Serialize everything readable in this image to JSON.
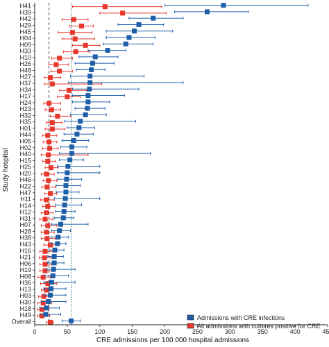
{
  "chart_data": {
    "type": "forest",
    "xlabel": "CRE admissions per 100 000 hospital admissions",
    "ylabel": "Study hospital",
    "xlim": [
      0,
      450
    ],
    "xticks": [
      0,
      50,
      100,
      150,
      200,
      250,
      300,
      350,
      400,
      450
    ],
    "reference_lines": [
      {
        "series": "cultures",
        "x": 22,
        "style": "dashed",
        "color": "#333333"
      },
      {
        "series": "infections",
        "x": 56,
        "style": "dotted",
        "color": "#1f6b6b"
      }
    ],
    "legend": {
      "placement": "bottom-right",
      "entries": [
        {
          "label": "Admissions with CRE infections",
          "color": "#1f5fa8"
        },
        {
          "label": "All admissions with cultures positive for CRE",
          "color": "#e8372c"
        }
      ]
    },
    "colors": {
      "infections": "#1f5fa8",
      "cultures": "#e8372c"
    },
    "categories": [
      "H41",
      "H39",
      "H42",
      "H29",
      "H45",
      "H04",
      "H09",
      "H33",
      "H10",
      "H26",
      "H48",
      "H27",
      "H37",
      "H34",
      "H17",
      "H24",
      "H23",
      "H32",
      "H35",
      "H01",
      "H44",
      "H05",
      "H02",
      "H40",
      "H15",
      "H25",
      "H20",
      "H46",
      "H22",
      "H47",
      "H11",
      "H14",
      "H12",
      "H31",
      "H07",
      "H28",
      "H38",
      "H43",
      "H16",
      "H21",
      "H06",
      "H19",
      "H08",
      "H36",
      "H13",
      "H03",
      "H30",
      "H18",
      "H49",
      "Overall"
    ],
    "infections": [
      [
        290,
        200,
        420
      ],
      [
        265,
        215,
        328
      ],
      [
        182,
        145,
        228
      ],
      [
        160,
        128,
        198
      ],
      [
        153,
        110,
        212
      ],
      [
        145,
        110,
        185
      ],
      [
        140,
        105,
        182
      ],
      [
        112,
        82,
        140
      ],
      [
        93,
        68,
        128
      ],
      [
        89,
        62,
        122
      ],
      [
        87,
        64,
        108
      ],
      [
        85,
        55,
        168
      ],
      [
        85,
        52,
        228
      ],
      [
        84,
        58,
        160
      ],
      [
        82,
        58,
        138
      ],
      [
        82,
        58,
        115
      ],
      [
        81,
        62,
        108
      ],
      [
        78,
        55,
        110
      ],
      [
        70,
        46,
        155
      ],
      [
        68,
        50,
        92
      ],
      [
        65,
        45,
        90
      ],
      [
        60,
        42,
        83
      ],
      [
        57,
        40,
        80
      ],
      [
        57,
        38,
        178
      ],
      [
        54,
        38,
        75
      ],
      [
        51,
        35,
        100
      ],
      [
        50,
        35,
        100
      ],
      [
        49,
        35,
        72
      ],
      [
        48,
        33,
        70
      ],
      [
        48,
        33,
        68
      ],
      [
        47,
        30,
        100
      ],
      [
        46,
        32,
        72
      ],
      [
        45,
        32,
        62
      ],
      [
        44,
        30,
        60
      ],
      [
        40,
        26,
        82
      ],
      [
        38,
        26,
        55
      ],
      [
        36,
        25,
        52
      ],
      [
        35,
        25,
        48
      ],
      [
        31,
        22,
        45
      ],
      [
        30,
        20,
        44
      ],
      [
        30,
        20,
        45
      ],
      [
        29,
        18,
        62
      ],
      [
        28,
        15,
        52
      ],
      [
        26,
        14,
        62
      ],
      [
        25,
        14,
        48
      ],
      [
        24,
        14,
        48
      ],
      [
        21,
        10,
        48
      ],
      [
        18,
        8,
        38
      ],
      [
        17,
        8,
        40
      ],
      [
        56,
        42,
        70
      ]
    ],
    "cultures": [
      [
        108,
        58,
        195
      ],
      [
        135,
        100,
        202
      ],
      [
        60,
        42,
        82
      ],
      [
        72,
        54,
        90
      ],
      [
        58,
        36,
        88
      ],
      [
        62,
        42,
        92
      ],
      [
        78,
        58,
        100
      ],
      [
        63,
        44,
        85
      ],
      [
        38,
        26,
        58
      ],
      [
        33,
        22,
        52
      ],
      [
        38,
        25,
        58
      ],
      [
        24,
        15,
        40
      ],
      [
        27,
        15,
        103
      ],
      [
        53,
        38,
        80
      ],
      [
        50,
        35,
        70
      ],
      [
        22,
        14,
        40
      ],
      [
        26,
        16,
        40
      ],
      [
        35,
        24,
        56
      ],
      [
        27,
        18,
        42
      ],
      [
        27,
        16,
        46
      ],
      [
        20,
        12,
        34
      ],
      [
        22,
        13,
        34
      ],
      [
        23,
        12,
        36
      ],
      [
        21,
        10,
        82
      ],
      [
        20,
        12,
        32
      ],
      [
        25,
        16,
        36
      ],
      [
        18,
        10,
        30
      ],
      [
        21,
        13,
        34
      ],
      [
        19,
        11,
        32
      ],
      [
        24,
        15,
        34
      ],
      [
        18,
        9,
        30
      ],
      [
        20,
        12,
        32
      ],
      [
        18,
        10,
        28
      ],
      [
        16,
        8,
        28
      ],
      [
        20,
        10,
        34
      ],
      [
        18,
        10,
        30
      ],
      [
        19,
        10,
        32
      ],
      [
        24,
        14,
        35
      ],
      [
        16,
        8,
        28
      ],
      [
        15,
        7,
        25
      ],
      [
        16,
        8,
        26
      ],
      [
        16,
        8,
        28
      ],
      [
        13,
        5,
        24
      ],
      [
        20,
        9,
        34
      ],
      [
        18,
        10,
        28
      ],
      [
        14,
        6,
        24
      ],
      [
        13,
        5,
        26
      ],
      [
        11,
        4,
        22
      ],
      [
        11,
        4,
        23
      ],
      [
        24,
        18,
        29
      ]
    ]
  }
}
